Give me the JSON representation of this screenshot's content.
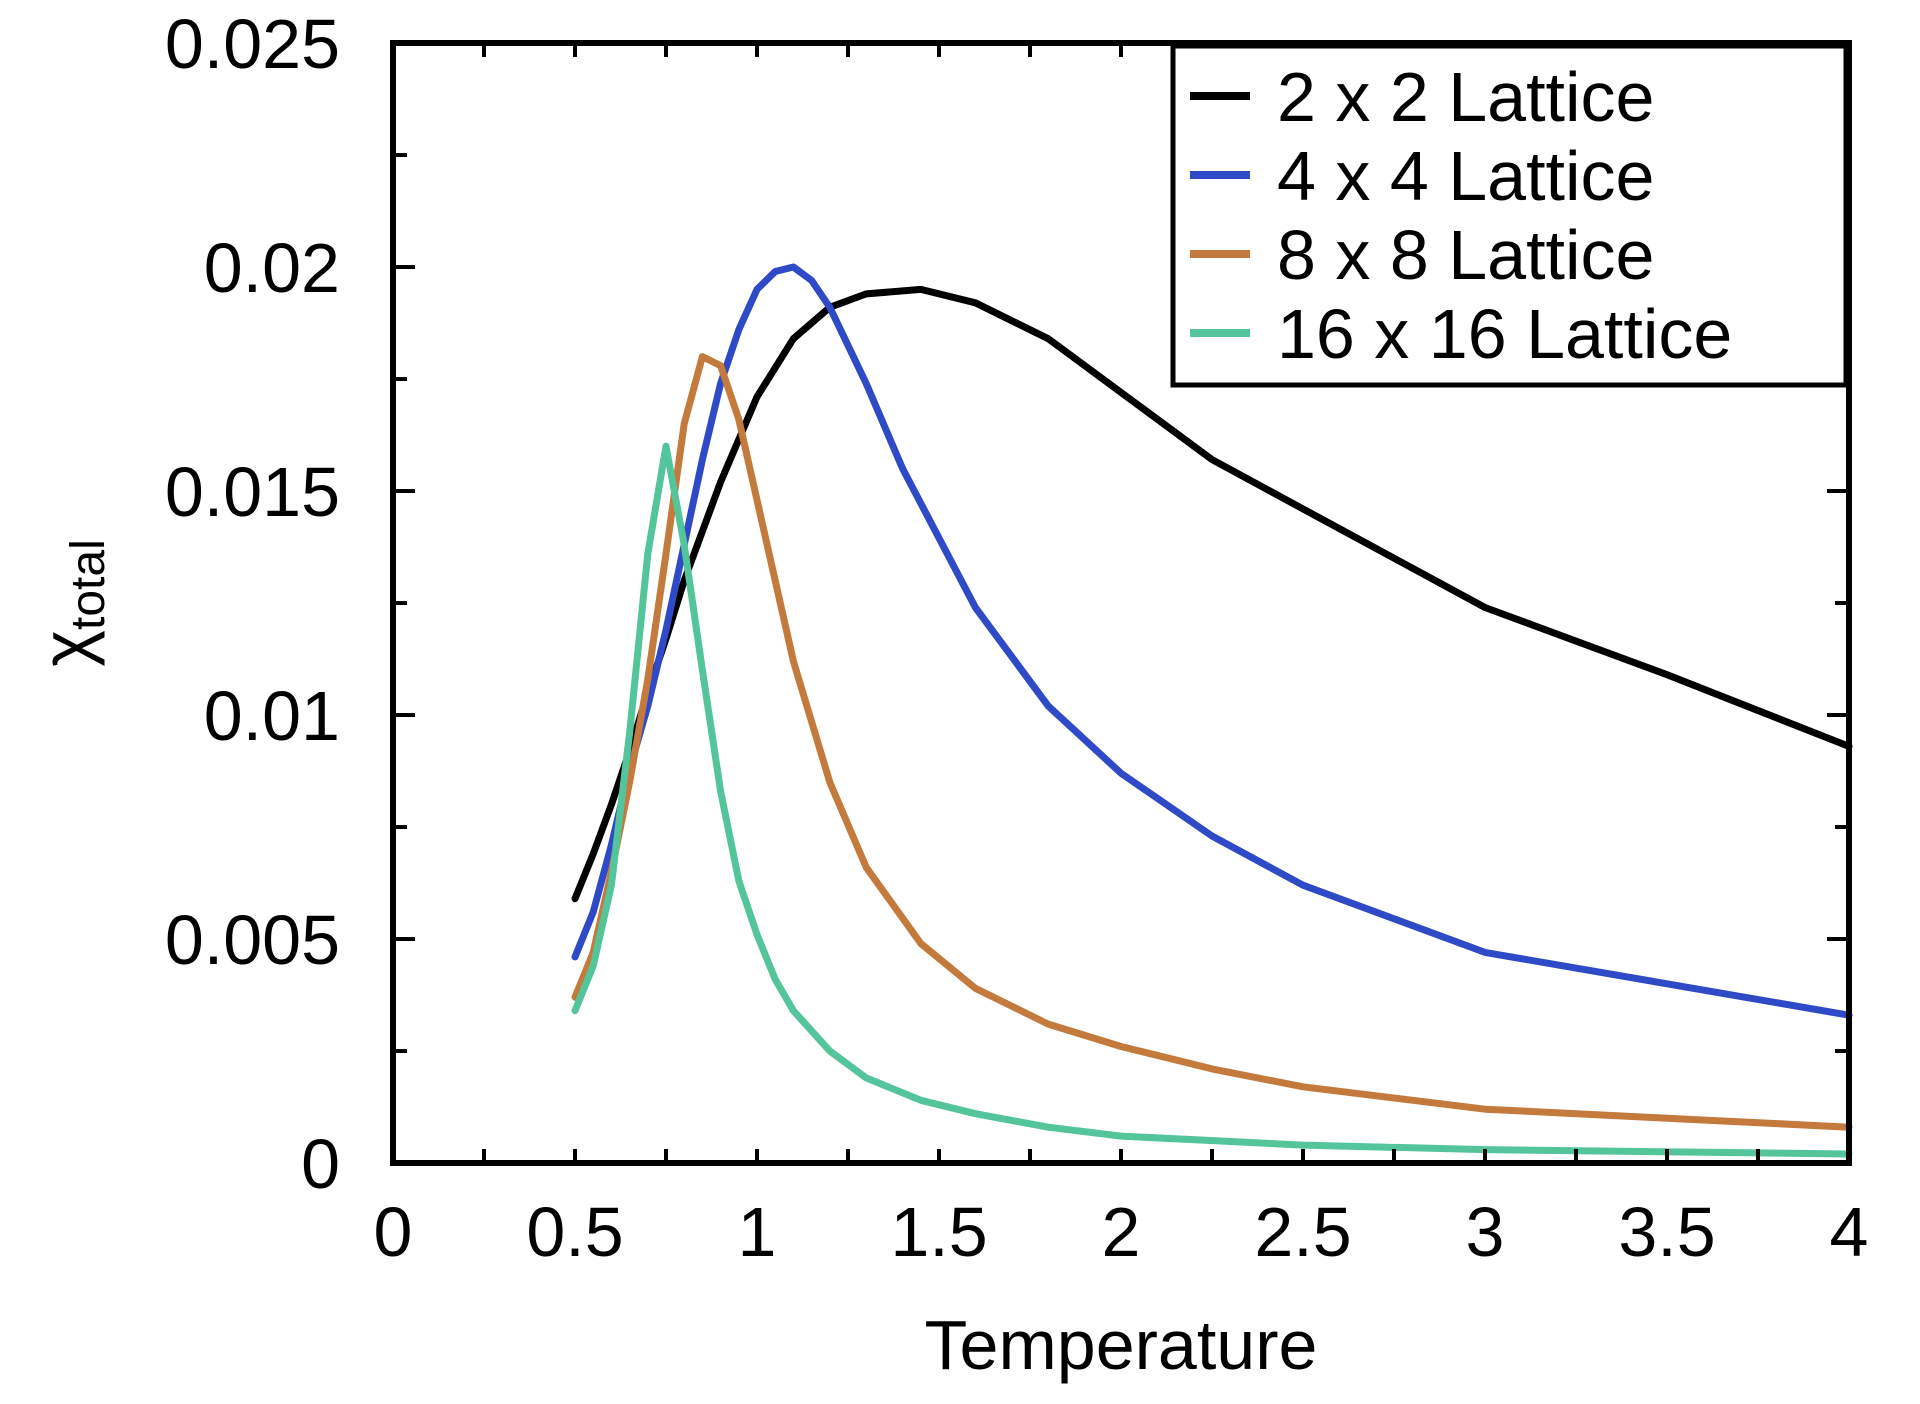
{
  "chart_data": {
    "type": "line",
    "title": "",
    "xlabel": "Temperature",
    "ylabel_main": "χ",
    "ylabel_sub": "total",
    "xlim": [
      0,
      4
    ],
    "ylim": [
      0,
      0.025
    ],
    "x_ticks": [
      "0",
      "0.5",
      "1",
      "1.5",
      "2",
      "2.5",
      "3",
      "3.5",
      "4"
    ],
    "y_ticks": [
      "0",
      "0.005",
      "0.01",
      "0.015",
      "0.02",
      "0.025"
    ],
    "legend_position": "top-right",
    "series": [
      {
        "name": "2 x 2 Lattice",
        "color": "#000000",
        "points": [
          [
            0.5,
            0.0059
          ],
          [
            0.55,
            0.0069
          ],
          [
            0.6,
            0.008
          ],
          [
            0.65,
            0.0092
          ],
          [
            0.7,
            0.0105
          ],
          [
            0.75,
            0.0117
          ],
          [
            0.8,
            0.013
          ],
          [
            0.9,
            0.0152
          ],
          [
            1.0,
            0.0171
          ],
          [
            1.1,
            0.0184
          ],
          [
            1.2,
            0.0191
          ],
          [
            1.3,
            0.0194
          ],
          [
            1.45,
            0.0195
          ],
          [
            1.6,
            0.0192
          ],
          [
            1.8,
            0.0184
          ],
          [
            2.0,
            0.0172
          ],
          [
            2.25,
            0.0157
          ],
          [
            2.5,
            0.0146
          ],
          [
            2.75,
            0.0135
          ],
          [
            3.0,
            0.0124
          ],
          [
            3.5,
            0.0109
          ],
          [
            4.0,
            0.0093
          ]
        ]
      },
      {
        "name": "4 x 4 Lattice",
        "color": "#2f4ac6",
        "points": [
          [
            0.5,
            0.0046
          ],
          [
            0.55,
            0.0056
          ],
          [
            0.6,
            0.0071
          ],
          [
            0.65,
            0.0088
          ],
          [
            0.7,
            0.0102
          ],
          [
            0.75,
            0.0119
          ],
          [
            0.8,
            0.0138
          ],
          [
            0.85,
            0.0157
          ],
          [
            0.9,
            0.0174
          ],
          [
            0.95,
            0.0186
          ],
          [
            1.0,
            0.0195
          ],
          [
            1.05,
            0.0199
          ],
          [
            1.1,
            0.02
          ],
          [
            1.15,
            0.0197
          ],
          [
            1.2,
            0.0191
          ],
          [
            1.3,
            0.0174
          ],
          [
            1.4,
            0.0155
          ],
          [
            1.6,
            0.0124
          ],
          [
            1.8,
            0.0102
          ],
          [
            2.0,
            0.0087
          ],
          [
            2.25,
            0.0073
          ],
          [
            2.5,
            0.0062
          ],
          [
            3.0,
            0.0047
          ],
          [
            3.5,
            0.004
          ],
          [
            4.0,
            0.0033
          ]
        ]
      },
      {
        "name": "8 x 8 Lattice",
        "color": "#c47a3c",
        "points": [
          [
            0.5,
            0.0037
          ],
          [
            0.55,
            0.0047
          ],
          [
            0.6,
            0.0065
          ],
          [
            0.65,
            0.0085
          ],
          [
            0.7,
            0.0108
          ],
          [
            0.75,
            0.0136
          ],
          [
            0.8,
            0.0165
          ],
          [
            0.85,
            0.018
          ],
          [
            0.9,
            0.0178
          ],
          [
            0.95,
            0.0166
          ],
          [
            1.0,
            0.0148
          ],
          [
            1.1,
            0.0112
          ],
          [
            1.2,
            0.0085
          ],
          [
            1.3,
            0.0066
          ],
          [
            1.45,
            0.0049
          ],
          [
            1.6,
            0.0039
          ],
          [
            1.8,
            0.0031
          ],
          [
            2.0,
            0.0026
          ],
          [
            2.25,
            0.0021
          ],
          [
            2.5,
            0.0017
          ],
          [
            3.0,
            0.0012
          ],
          [
            3.5,
            0.001
          ],
          [
            4.0,
            0.0008
          ]
        ]
      },
      {
        "name": "16 x 16 Lattice",
        "color": "#54c49a",
        "points": [
          [
            0.5,
            0.0034
          ],
          [
            0.55,
            0.0044
          ],
          [
            0.6,
            0.0062
          ],
          [
            0.65,
            0.0096
          ],
          [
            0.7,
            0.0136
          ],
          [
            0.75,
            0.016
          ],
          [
            0.8,
            0.0138
          ],
          [
            0.85,
            0.011
          ],
          [
            0.9,
            0.0083
          ],
          [
            0.95,
            0.0063
          ],
          [
            1.0,
            0.0051
          ],
          [
            1.05,
            0.0041
          ],
          [
            1.1,
            0.0034
          ],
          [
            1.2,
            0.0025
          ],
          [
            1.3,
            0.0019
          ],
          [
            1.45,
            0.0014
          ],
          [
            1.6,
            0.0011
          ],
          [
            1.8,
            0.0008
          ],
          [
            2.0,
            0.0006
          ],
          [
            2.5,
            0.0004
          ],
          [
            3.0,
            0.0003
          ],
          [
            4.0,
            0.0002
          ]
        ]
      }
    ]
  }
}
